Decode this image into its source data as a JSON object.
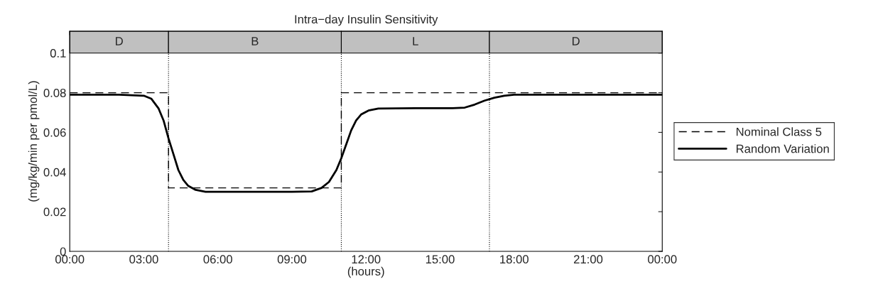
{
  "chart_data": {
    "type": "line",
    "title": "Intra−day Insulin Sensitivity",
    "xlabel": "(hours)",
    "ylabel": "(mg/kg/min per pmol/L)",
    "xlim": [
      0,
      24
    ],
    "xticks": [
      {
        "value": 0,
        "label": "00:00"
      },
      {
        "value": 3,
        "label": "03:00"
      },
      {
        "value": 6,
        "label": "06:00"
      },
      {
        "value": 9,
        "label": "09:00"
      },
      {
        "value": 12,
        "label": "12:00"
      },
      {
        "value": 15,
        "label": "15:00"
      },
      {
        "value": 18,
        "label": "18:00"
      },
      {
        "value": 21,
        "label": "21:00"
      },
      {
        "value": 24,
        "label": "00:00"
      }
    ],
    "ylim": [
      0,
      0.111
    ],
    "yticks": [
      0,
      0.02,
      0.04,
      0.06,
      0.08,
      0.1
    ],
    "grid": false,
    "legend": "right",
    "series": [
      {
        "name": "Nominal Class 5",
        "color": "#000000",
        "line_style": "dashed",
        "x": [
          0,
          4,
          4,
          11,
          11,
          24
        ],
        "values": [
          0.08,
          0.08,
          0.032,
          0.032,
          0.08,
          0.08
        ]
      },
      {
        "name": "Random Variation",
        "color": "#000000",
        "line_style": "solid",
        "x": [
          0,
          2,
          3,
          3.3,
          3.6,
          3.8,
          4,
          4.2,
          4.4,
          4.6,
          4.8,
          5.1,
          5.5,
          7,
          9,
          9.8,
          10.2,
          10.5,
          10.8,
          11,
          11.2,
          11.4,
          11.6,
          11.8,
          12.1,
          12.5,
          14,
          15.5,
          16,
          16.4,
          16.8,
          17.2,
          17.6,
          18,
          24
        ],
        "values": [
          0.079,
          0.079,
          0.0785,
          0.077,
          0.072,
          0.066,
          0.057,
          0.049,
          0.041,
          0.036,
          0.033,
          0.031,
          0.03,
          0.03,
          0.03,
          0.0302,
          0.032,
          0.035,
          0.041,
          0.047,
          0.054,
          0.061,
          0.066,
          0.069,
          0.071,
          0.072,
          0.0722,
          0.0722,
          0.0725,
          0.074,
          0.076,
          0.0775,
          0.0785,
          0.079,
          0.079
        ]
      }
    ],
    "ref_lines": [
      {
        "axis": "x",
        "value": 4,
        "line_style": "dotted"
      },
      {
        "axis": "x",
        "value": 11,
        "line_style": "dotted"
      },
      {
        "axis": "x",
        "value": 17,
        "line_style": "dotted"
      }
    ],
    "bands": [
      {
        "axis": "x",
        "from": 0,
        "to": 4,
        "label": "D",
        "color": "#c0c0c0"
      },
      {
        "axis": "x",
        "from": 4,
        "to": 11,
        "label": "B",
        "color": "#c0c0c0"
      },
      {
        "axis": "x",
        "from": 11,
        "to": 17,
        "label": "L",
        "color": "#c0c0c0"
      },
      {
        "axis": "x",
        "from": 17,
        "to": 24,
        "label": "D",
        "color": "#c0c0c0"
      }
    ]
  }
}
